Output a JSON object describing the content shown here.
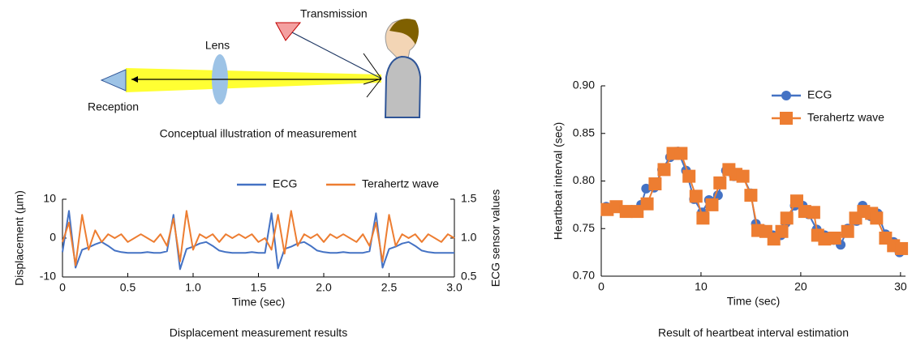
{
  "illustration": {
    "transmission": "Transmission",
    "lens": "Lens",
    "reception": "Reception",
    "caption": "Conceptual illustration of measurement"
  },
  "chart_data": [
    {
      "type": "line",
      "caption": "Displacement measurement results",
      "x_label": "Time (sec)",
      "y_label": "Displacement (µm)",
      "y2_label": "ECG sensor values",
      "legend": "top",
      "xlim": [
        0,
        3
      ],
      "ylim": [
        -10,
        10
      ],
      "y2lim": [
        0.5,
        1.5
      ],
      "xticks": [
        0,
        0.5,
        {
          "value": 1,
          "label": "1.0"
        },
        1.5,
        {
          "value": 2,
          "label": "2.0"
        },
        2.5,
        {
          "value": 3,
          "label": "3.0"
        }
      ],
      "yticks": [
        -10,
        0,
        10
      ],
      "y2ticks": [
        0.5,
        {
          "value": 1,
          "label": "1.0"
        },
        1.5
      ],
      "x": [
        0,
        0.05,
        0.1,
        0.15,
        0.2,
        0.25,
        0.3,
        0.35,
        0.4,
        0.45,
        0.5,
        0.55,
        0.6,
        0.65,
        0.7,
        0.75,
        0.8,
        0.85,
        0.9,
        0.95,
        1.0,
        1.05,
        1.1,
        1.15,
        1.2,
        1.25,
        1.3,
        1.35,
        1.4,
        1.45,
        1.5,
        1.55,
        1.6,
        1.65,
        1.7,
        1.75,
        1.8,
        1.85,
        1.9,
        1.95,
        2.0,
        2.05,
        2.1,
        2.15,
        2.2,
        2.25,
        2.3,
        2.35,
        2.4,
        2.45,
        2.5,
        2.55,
        2.6,
        2.65,
        2.7,
        2.75,
        2.8,
        2.85,
        2.9,
        2.95,
        3.0
      ],
      "series": [
        {
          "name": "ECG",
          "color": "#4472c4",
          "axis": "y2",
          "values": [
            0.82,
            1.35,
            0.62,
            0.85,
            0.88,
            0.92,
            0.95,
            0.9,
            0.84,
            0.82,
            0.81,
            0.81,
            0.81,
            0.82,
            0.81,
            0.81,
            0.83,
            1.3,
            0.6,
            0.86,
            0.89,
            0.93,
            0.95,
            0.9,
            0.84,
            0.82,
            0.81,
            0.81,
            0.81,
            0.82,
            0.81,
            0.81,
            1.32,
            0.61,
            0.86,
            0.89,
            0.93,
            0.95,
            0.9,
            0.84,
            0.82,
            0.81,
            0.81,
            0.82,
            0.81,
            0.81,
            0.81,
            0.83,
            1.32,
            0.62,
            0.86,
            0.89,
            0.93,
            0.95,
            0.9,
            0.84,
            0.82,
            0.81,
            0.81,
            0.81,
            0.81
          ]
        },
        {
          "name": "Terahertz wave",
          "color": "#ed7d31",
          "values": [
            -1,
            4,
            -7,
            6,
            -3,
            2,
            -1,
            1,
            0,
            1,
            -1,
            0,
            1,
            0,
            -1,
            1,
            -2,
            5,
            -6,
            7,
            -3,
            1,
            0,
            1,
            -1,
            1,
            0,
            1,
            0,
            1,
            -1,
            0,
            -3,
            6,
            -4,
            7,
            -2,
            1,
            0,
            1,
            -1,
            1,
            0,
            1,
            0,
            -1,
            1,
            -2,
            4,
            -6,
            6,
            -2,
            1,
            0,
            1,
            -1,
            1,
            0,
            -1,
            1,
            0
          ]
        }
      ]
    },
    {
      "type": "line",
      "caption": "Result of heartbeat interval estimation",
      "x_label": "Time (sec)",
      "y_label": "Heartbeat interval (sec)",
      "legend": "upper center",
      "xlim": [
        0,
        30.5
      ],
      "ylim": [
        0.7,
        0.9
      ],
      "xticks": [
        0,
        10,
        20,
        30
      ],
      "yticks": [
        {
          "value": 0.7,
          "label": "0.70"
        },
        0.75,
        {
          "value": 0.8,
          "label": "0.80"
        },
        0.85,
        {
          "value": 0.9,
          "label": "0.90"
        }
      ],
      "series": [
        {
          "name": "ECG",
          "color": "#4472c4",
          "marker": "circle",
          "x": [
            0.5,
            1.4,
            2.4,
            3.3,
            4.0,
            4.5,
            5.3,
            6.1,
            6.9,
            7.7,
            8.5,
            9.3,
            10.1,
            10.8,
            11.7,
            12.5,
            13.3,
            14.2,
            15.0,
            15.5,
            16.3,
            17.2,
            18.0,
            18.5,
            19.4,
            20.2,
            20.8,
            21.6,
            22.4,
            23.3,
            24.0,
            24.7,
            25.6,
            26.2,
            27.0,
            27.7,
            28.5,
            29.3,
            29.9
          ],
          "values": [
            0.773,
            0.773,
            0.767,
            0.767,
            0.775,
            0.792,
            0.793,
            0.812,
            0.825,
            0.831,
            0.811,
            0.781,
            0.767,
            0.78,
            0.785,
            0.811,
            0.805,
            0.805,
            0.787,
            0.755,
            0.749,
            0.743,
            0.743,
            0.756,
            0.774,
            0.774,
            0.765,
            0.749,
            0.743,
            0.738,
            0.733,
            0.75,
            0.758,
            0.774,
            0.763,
            0.766,
            0.744,
            0.736,
            0.725
          ]
        },
        {
          "name": "Terahertz wave",
          "color": "#ed7d31",
          "marker": "square",
          "x": [
            0.6,
            1.5,
            2.5,
            3.6,
            4.6,
            5.4,
            6.3,
            7.2,
            8.0,
            8.8,
            9.5,
            10.2,
            11.1,
            11.9,
            12.8,
            13.5,
            14.2,
            15.0,
            15.7,
            16.5,
            17.3,
            18.1,
            18.6,
            19.6,
            20.4,
            21.3,
            21.7,
            22.4,
            23.4,
            24.7,
            25.5,
            26.3,
            27.1,
            27.6,
            28.5,
            29.3,
            30.1
          ],
          "values": [
            0.77,
            0.773,
            0.768,
            0.768,
            0.776,
            0.797,
            0.812,
            0.829,
            0.829,
            0.805,
            0.784,
            0.761,
            0.775,
            0.798,
            0.812,
            0.807,
            0.805,
            0.785,
            0.748,
            0.747,
            0.739,
            0.747,
            0.761,
            0.779,
            0.768,
            0.767,
            0.743,
            0.739,
            0.74,
            0.747,
            0.761,
            0.768,
            0.766,
            0.761,
            0.74,
            0.732,
            0.729
          ]
        }
      ]
    }
  ]
}
